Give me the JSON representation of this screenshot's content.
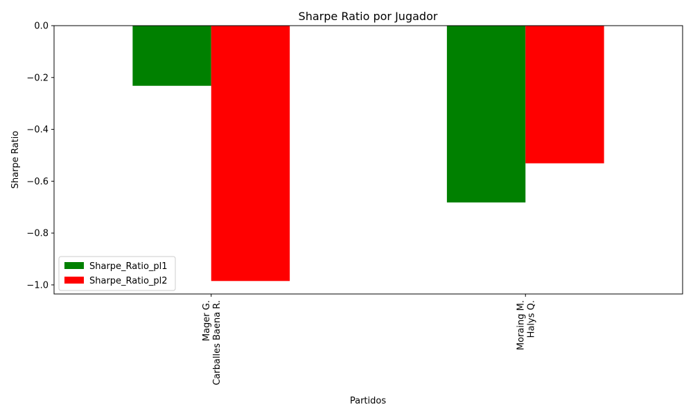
{
  "chart_data": {
    "type": "bar",
    "title": "Sharpe Ratio por Jugador",
    "xlabel": "Partidos",
    "ylabel": "Sharpe Ratio",
    "categories": [
      [
        "Mager G.",
        "Carballes Baena R."
      ],
      [
        "Moraing M.",
        "Halys Q."
      ]
    ],
    "series": [
      {
        "name": "Sharpe_Ratio_pl1",
        "color": "#008000",
        "values": [
          -0.232,
          -0.682
        ]
      },
      {
        "name": "Sharpe_Ratio_pl2",
        "color": "#ff0000",
        "values": [
          -0.985,
          -0.531
        ]
      }
    ],
    "ylim": [
      -1.035,
      0.0
    ],
    "yticks": [
      0.0,
      -0.2,
      -0.4,
      -0.6,
      -0.8,
      -1.0
    ],
    "ytick_labels": [
      "0.0",
      "−0.2",
      "−0.4",
      "−0.6",
      "−0.8",
      "−1.0"
    ],
    "xtick_rotation": "vertical",
    "legend_position": "lower-left",
    "grid": false
  }
}
